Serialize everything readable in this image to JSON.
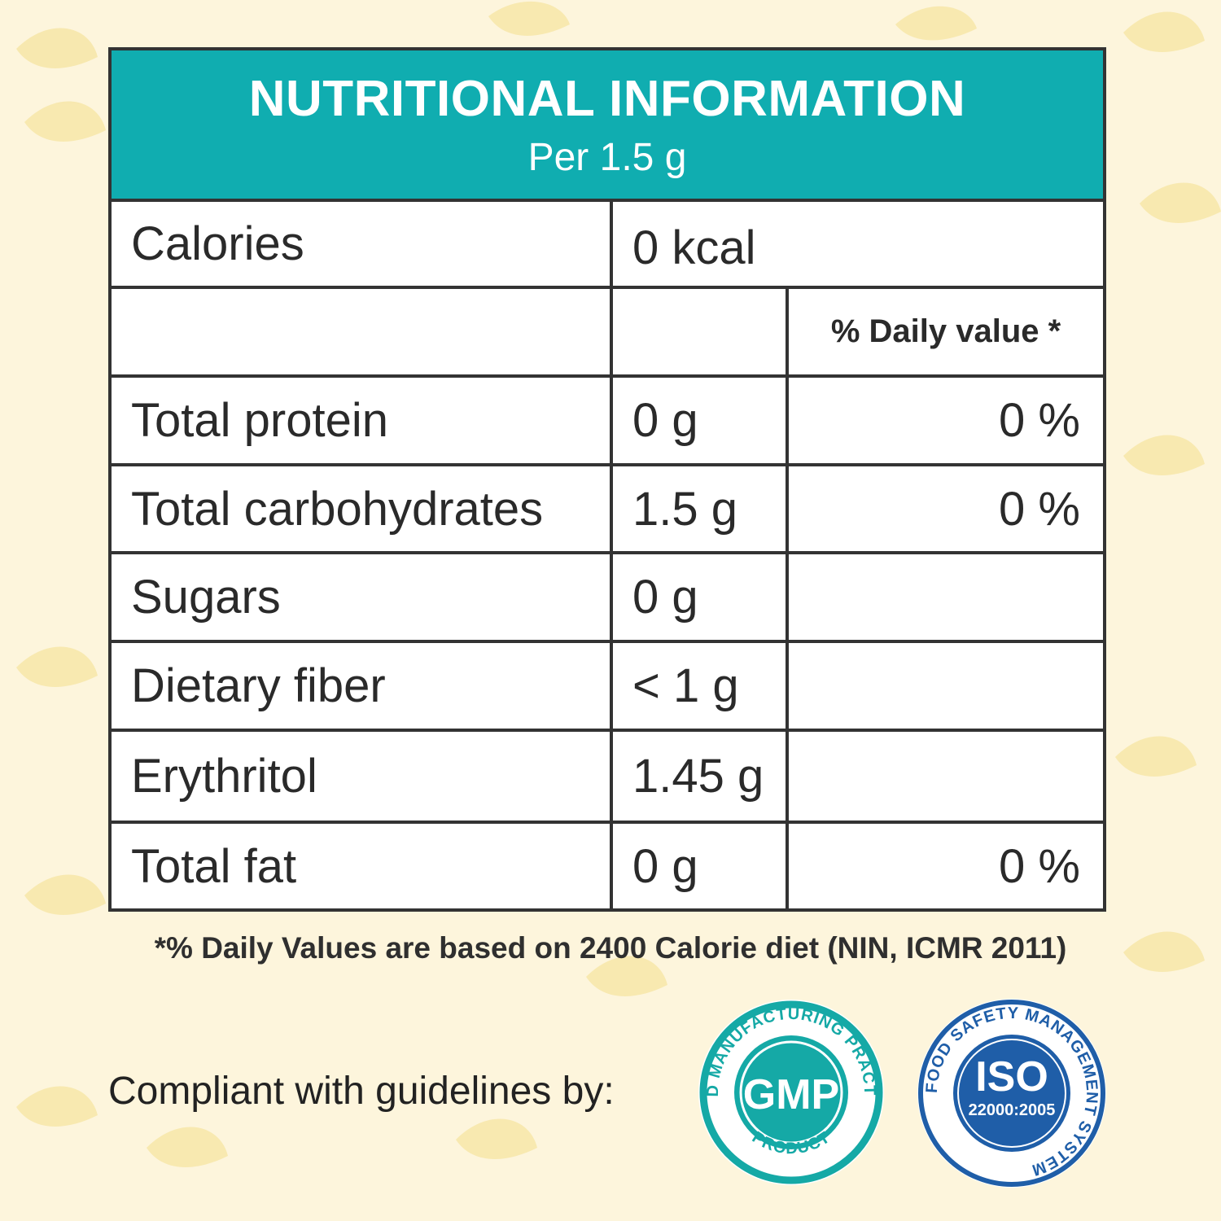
{
  "header": {
    "title": "NUTRITIONAL INFORMATION",
    "subtitle": "Per 1.5 g"
  },
  "calories": {
    "label": "Calories",
    "value": "0 kcal"
  },
  "daily_value_header": "% Daily value *",
  "rows": [
    {
      "label": "Total protein",
      "amount": "0 g",
      "dv": "0 %"
    },
    {
      "label": "Total carbohydrates",
      "amount": "1.5 g",
      "dv": "0 %"
    },
    {
      "label": "Sugars",
      "amount": "0 g",
      "dv": ""
    },
    {
      "label": "Dietary fiber",
      "amount": "< 1 g",
      "dv": ""
    },
    {
      "label": "Erythritol",
      "amount": "1.45 g",
      "dv": ""
    },
    {
      "label": "Total fat",
      "amount": "0 g",
      "dv": "0 %"
    }
  ],
  "footnote": "*% Daily Values are based on 2400 Calorie diet (NIN, ICMR 2011)",
  "compliance": {
    "label": "Compliant with guidelines by:",
    "gmp_seal": {
      "ring_text": "GOOD MANUFACTURING PRACTICES",
      "bottom_text": "PRODUCT",
      "center_text": "GMP",
      "color": "#15a9a6"
    },
    "iso_seal": {
      "ring_text": "FOOD SAFETY MANAGEMENT SYSTEM",
      "center_text": "ISO",
      "standard": "22000:2005",
      "color": "#1f5ea8"
    }
  },
  "colors": {
    "header_bg": "#10adb0",
    "page_bg": "#fdf5dc",
    "border": "#333333"
  }
}
